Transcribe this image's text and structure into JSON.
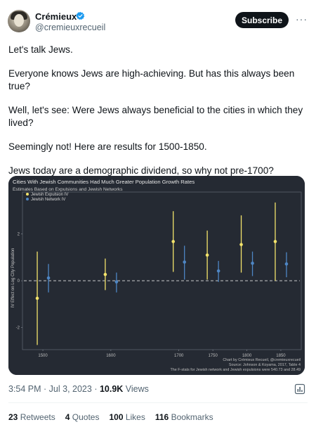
{
  "author": {
    "name": "Crémieux",
    "handle": "@cremieuxrecueil",
    "subscribe_label": "Subscribe",
    "more_label": "···"
  },
  "tweet": {
    "paragraphs": [
      "Let's talk Jews.",
      "Everyone knows Jews are high-achieving. But has this always been true?",
      "Well, let's see: Were Jews always beneficial to the cities in which they lived?",
      "Seemingly not! Here are results for 1500-1850.",
      "Jews today are a demographic dividend, so why not pre-1700?"
    ]
  },
  "chart_data": {
    "type": "scatter",
    "title": "Cities With Jewish Communities Had Much Greater Population Growth Rates",
    "subtitle": "Estimates Based on Expulsions and Jewish Networks",
    "ylabel": "IV Effect on Log City Population",
    "xlim": [
      1470,
      1880
    ],
    "ylim": [
      -2.95,
      3.8
    ],
    "yticks": [
      -2,
      0,
      2
    ],
    "xticks": [
      1500,
      1600,
      1700,
      1750,
      1800,
      1850
    ],
    "categories": [
      "1500",
      "1600",
      "1700",
      "1750",
      "1800",
      "1850"
    ],
    "legend_position": "top-left",
    "series": [
      {
        "name": "Jewish Expulsion IV",
        "color": "#f3e36b",
        "points": [
          {
            "x": 1500,
            "y": -0.75,
            "lo": -2.75,
            "hi": 1.25
          },
          {
            "x": 1600,
            "y": 0.27,
            "lo": -0.4,
            "hi": 0.95
          },
          {
            "x": 1700,
            "y": 1.68,
            "lo": 0.38,
            "hi": 2.98
          },
          {
            "x": 1750,
            "y": 1.1,
            "lo": 0.05,
            "hi": 2.15
          },
          {
            "x": 1800,
            "y": 1.55,
            "lo": 0.35,
            "hi": 2.8
          },
          {
            "x": 1850,
            "y": 1.68,
            "lo": 0.0,
            "hi": 3.35
          }
        ]
      },
      {
        "name": "Jewish Network IV",
        "color": "#4e86c4",
        "points": [
          {
            "x": 1500,
            "y": 0.12,
            "lo": -0.5,
            "hi": 0.72
          },
          {
            "x": 1600,
            "y": -0.05,
            "lo": -0.5,
            "hi": 0.35
          },
          {
            "x": 1700,
            "y": 0.8,
            "lo": 0.05,
            "hi": 1.5
          },
          {
            "x": 1750,
            "y": 0.42,
            "lo": -0.05,
            "hi": 0.85
          },
          {
            "x": 1800,
            "y": 0.75,
            "lo": 0.2,
            "hi": 1.25
          },
          {
            "x": 1850,
            "y": 0.72,
            "lo": 0.15,
            "hi": 1.22
          }
        ]
      }
    ],
    "credits": [
      "Chart by Crémieux Recueil, @cremieuxrecueil",
      "Source: Johnson & Koyama, 2017, Table 4",
      "The F-stats for Jewish network and Jewish expulsions were 540.73 and 28.49"
    ]
  },
  "meta": {
    "time": "3:54 PM · Jul 3, 2023",
    "views_count": "10.9K",
    "views_label": "Views"
  },
  "stats": [
    {
      "count": "23",
      "label": "Retweets"
    },
    {
      "count": "4",
      "label": "Quotes"
    },
    {
      "count": "100",
      "label": "Likes"
    },
    {
      "count": "116",
      "label": "Bookmarks"
    }
  ]
}
